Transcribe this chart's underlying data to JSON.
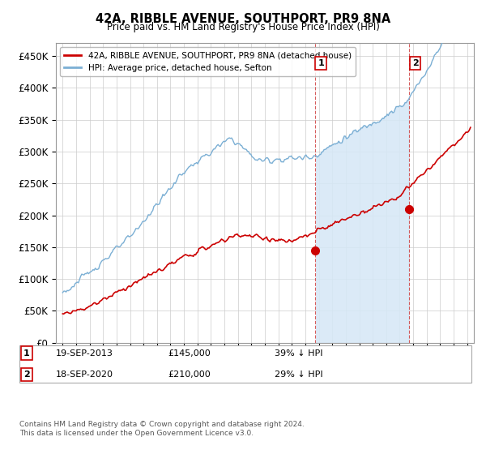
{
  "title": "42A, RIBBLE AVENUE, SOUTHPORT, PR9 8NA",
  "subtitle": "Price paid vs. HM Land Registry's House Price Index (HPI)",
  "ylabel_ticks": [
    "£0",
    "£50K",
    "£100K",
    "£150K",
    "£200K",
    "£250K",
    "£300K",
    "£350K",
    "£400K",
    "£450K"
  ],
  "ytick_vals": [
    0,
    50000,
    100000,
    150000,
    200000,
    250000,
    300000,
    350000,
    400000,
    450000
  ],
  "ylim": [
    0,
    470000
  ],
  "xlim_start": 1994.5,
  "xlim_end": 2025.5,
  "hpi_color": "#7bafd4",
  "hpi_fill_color": "#d6e8f7",
  "price_color": "#cc0000",
  "vline_color": "#cc3333",
  "sale1_year": 2013.72,
  "sale1_value": 145000,
  "sale2_year": 2020.72,
  "sale2_value": 210000,
  "legend_entries": [
    "42A, RIBBLE AVENUE, SOUTHPORT, PR9 8NA (detached house)",
    "HPI: Average price, detached house, Sefton"
  ],
  "table_rows": [
    {
      "num": "1",
      "date": "19-SEP-2013",
      "price": "£145,000",
      "hpi": "39% ↓ HPI"
    },
    {
      "num": "2",
      "date": "18-SEP-2020",
      "price": "£210,000",
      "hpi": "29% ↓ HPI"
    }
  ],
  "footer": "Contains HM Land Registry data © Crown copyright and database right 2024.\nThis data is licensed under the Open Government Licence v3.0.",
  "background_color": "#ffffff",
  "grid_color": "#cccccc"
}
